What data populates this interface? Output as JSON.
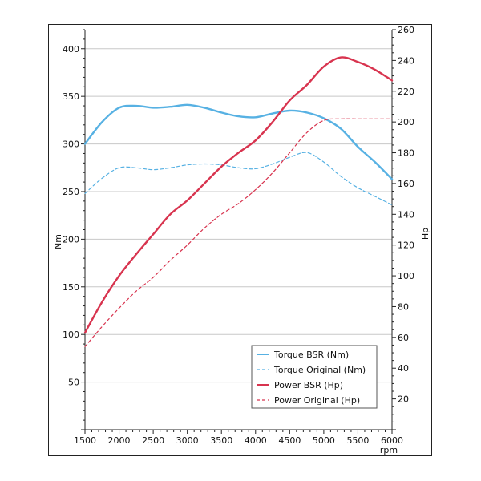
{
  "chart_data": {
    "type": "line",
    "x_label": "rpm",
    "y_left_label": "Nm",
    "y_right_label": "Hp",
    "x_range": [
      1500,
      6000
    ],
    "x_ticks": [
      1500,
      2000,
      2500,
      3000,
      3500,
      4000,
      4500,
      5000,
      5500,
      6000
    ],
    "y_left_range": [
      0,
      420
    ],
    "y_left_ticks": [
      50,
      100,
      150,
      200,
      250,
      300,
      350,
      400
    ],
    "y_right_range": [
      0,
      260
    ],
    "y_right_ticks": [
      20,
      40,
      60,
      80,
      100,
      120,
      140,
      160,
      180,
      200,
      220,
      240,
      260
    ],
    "grid": "horizontal",
    "legend_position": "bottom-right",
    "series": [
      {
        "name": "Torque BSR (Nm)",
        "axis": "left",
        "color": "#57b1e3",
        "style": "solid",
        "x": [
          1500,
          1750,
          2000,
          2250,
          2500,
          2750,
          3000,
          3250,
          3500,
          3750,
          4000,
          4250,
          4500,
          4750,
          5000,
          5250,
          5500,
          5750,
          6000
        ],
        "y": [
          300,
          323,
          338,
          340,
          338,
          339,
          341,
          338,
          333,
          329,
          328,
          332,
          335,
          333,
          327,
          316,
          297,
          281,
          263
        ]
      },
      {
        "name": "Torque Original (Nm)",
        "axis": "left",
        "color": "#57b1e3",
        "style": "dashed",
        "x": [
          1500,
          1750,
          2000,
          2250,
          2500,
          2750,
          3000,
          3250,
          3500,
          3750,
          4000,
          4250,
          4500,
          4750,
          5000,
          5250,
          5500,
          5750,
          6000
        ],
        "y": [
          248,
          264,
          275,
          275,
          273,
          275,
          278,
          279,
          278,
          275,
          274,
          279,
          286,
          291,
          281,
          266,
          254,
          245,
          236
        ]
      },
      {
        "name": "Power BSR (Hp)",
        "axis": "right",
        "color": "#d8344f",
        "style": "solid",
        "x": [
          1500,
          1750,
          2000,
          2250,
          2500,
          2750,
          3000,
          3250,
          3500,
          3750,
          4000,
          4250,
          4500,
          4750,
          5000,
          5250,
          5500,
          5750,
          6000
        ],
        "y": [
          63,
          83,
          100,
          114,
          127,
          140,
          149,
          160,
          171,
          180,
          188,
          200,
          214,
          224,
          236,
          242,
          239,
          234,
          227
        ]
      },
      {
        "name": "Power Original (Hp)",
        "axis": "right",
        "color": "#d8344f",
        "style": "dashed",
        "x": [
          1500,
          1750,
          2000,
          2250,
          2500,
          2750,
          3000,
          3250,
          3500,
          3750,
          4000,
          4250,
          4500,
          4750,
          5000,
          5250,
          5500,
          5750,
          6000
        ],
        "y": [
          54,
          67,
          79,
          90,
          99,
          110,
          120,
          131,
          140,
          147,
          156,
          167,
          180,
          193,
          201,
          202,
          202,
          202,
          202
        ]
      }
    ]
  }
}
